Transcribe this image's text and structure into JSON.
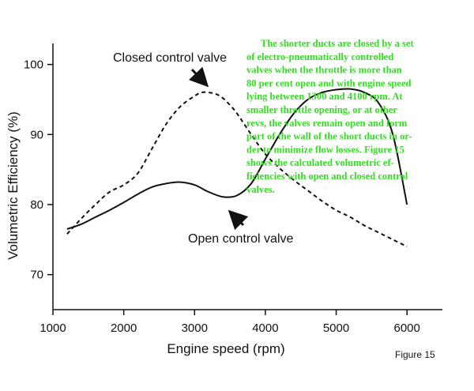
{
  "chart_data": {
    "type": "line",
    "xlabel": "Engine speed (rpm)",
    "ylabel": "Volumetric Efficiency (%)",
    "xlim": [
      1000,
      6500
    ],
    "ylim": [
      65,
      103
    ],
    "x_ticks": [
      1000,
      2000,
      3000,
      4000,
      5000,
      6000
    ],
    "y_ticks": [
      70,
      80,
      90,
      100
    ],
    "grid": false,
    "legend": "none",
    "series": [
      {
        "name": "Closed control valve",
        "style": "dashed",
        "color": "#111111",
        "x": [
          1200,
          1400,
          1600,
          1800,
          2000,
          2200,
          2400,
          2600,
          2800,
          3000,
          3100,
          3200,
          3300,
          3400,
          3500,
          3600,
          3800,
          4000,
          4200,
          4400,
          4600,
          4800,
          5000,
          5200,
          5400,
          5600,
          5800,
          6000
        ],
        "y": [
          75.8,
          78.0,
          80.0,
          81.8,
          82.8,
          84.5,
          88.0,
          91.5,
          94.0,
          95.5,
          96.0,
          96.0,
          95.8,
          95.2,
          94.2,
          93.0,
          90.0,
          87.2,
          85.2,
          83.5,
          82.0,
          80.5,
          79.2,
          78.2,
          77.0,
          76.0,
          75.0,
          74.0
        ]
      },
      {
        "name": "Open control valve",
        "style": "solid",
        "color": "#111111",
        "x": [
          1200,
          1400,
          1600,
          1800,
          2000,
          2200,
          2400,
          2600,
          2800,
          3000,
          3200,
          3400,
          3600,
          3800,
          4000,
          4200,
          4400,
          4600,
          4800,
          5000,
          5200,
          5400,
          5600,
          5800,
          6000
        ],
        "y": [
          76.5,
          77.2,
          78.2,
          79.2,
          80.3,
          81.5,
          82.5,
          83.0,
          83.2,
          82.8,
          81.8,
          81.1,
          81.3,
          83.0,
          86.5,
          90.0,
          93.0,
          95.0,
          96.0,
          96.4,
          96.5,
          96.0,
          94.5,
          90.0,
          80.0
        ]
      }
    ],
    "annotations": [
      {
        "text": "Closed control valve",
        "arrow_to_series": "Closed control valve"
      },
      {
        "text": "Open control valve",
        "arrow_to_series": "Open control valve"
      }
    ],
    "figure_label": "Figure 15"
  },
  "note": {
    "color": "#33dd22",
    "lines": [
      "The shorter ducts are closed by a set",
      "of electro-pneumatically controlled",
      "valves when the throttle is more than",
      "80 per cent open and with engine speed",
      "lying between 1300 and 4100 rpm. At",
      "smaller throttle opening, or at other",
      "revs, the valves remain open and form",
      "part of the wall of the short ducts in or-",
      "der to minimize flow losses. Figure 15",
      "shows the calculated volumetric ef-",
      "ficiencies with open and closed control",
      "valves."
    ]
  }
}
